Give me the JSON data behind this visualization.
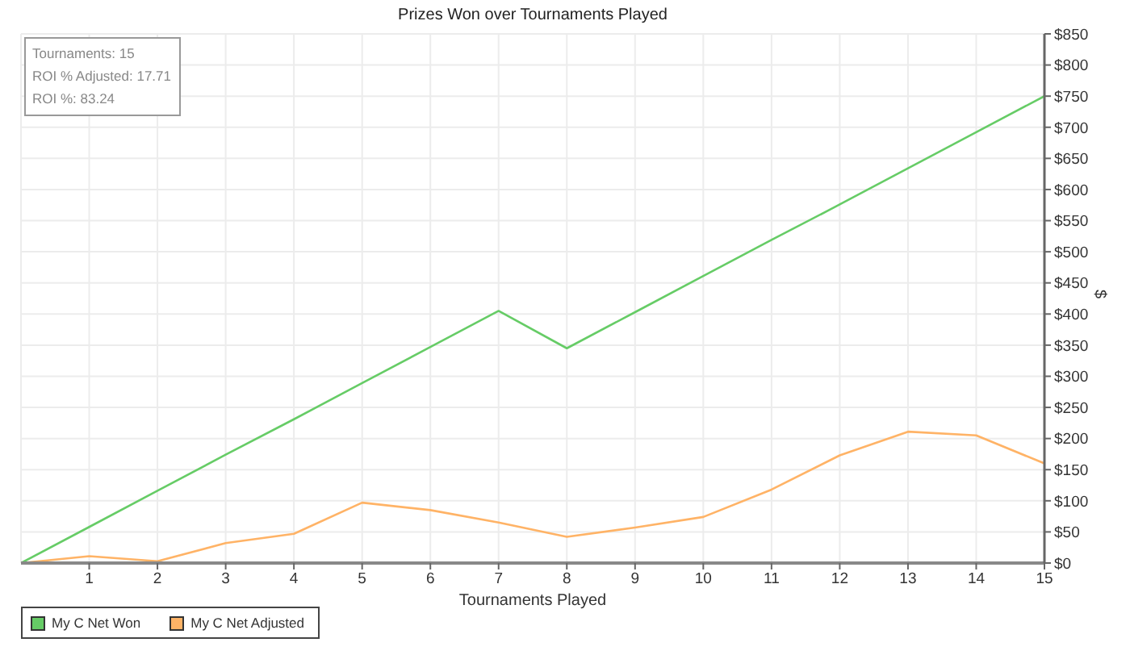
{
  "chart_data": {
    "type": "line",
    "title": "Prizes Won over Tournaments Played",
    "xlabel": "Tournaments Played",
    "ylabel": "$",
    "annotations": [
      "Tournaments: 15",
      "ROI % Adjusted: 17.71",
      "ROI %: 83.24"
    ],
    "x": [
      0,
      1,
      2,
      3,
      4,
      5,
      6,
      7,
      8,
      9,
      10,
      11,
      12,
      13,
      14,
      15
    ],
    "series": [
      {
        "name": "My C Net Won",
        "color": "#66cc66",
        "values": [
          0,
          58,
          116,
          174,
          231,
          289,
          347,
          405,
          345,
          403,
          461,
          519,
          576,
          634,
          692,
          750
        ]
      },
      {
        "name": "My C Net Adjusted",
        "color": "#ffb366",
        "values": [
          0,
          11,
          3,
          32,
          47,
          97,
          85,
          65,
          42,
          57,
          74,
          118,
          173,
          211,
          205,
          160
        ]
      }
    ],
    "xlim": [
      0,
      15
    ],
    "xticks": [
      1,
      2,
      3,
      4,
      5,
      6,
      7,
      8,
      9,
      10,
      11,
      12,
      13,
      14,
      15
    ],
    "ylim": [
      0,
      850
    ],
    "yticks": [
      {
        "value": 0,
        "label": "$0"
      },
      {
        "value": 50,
        "label": "$50"
      },
      {
        "value": 100,
        "label": "$100"
      },
      {
        "value": 150,
        "label": "$150"
      },
      {
        "value": 200,
        "label": "$200"
      },
      {
        "value": 250,
        "label": "$250"
      },
      {
        "value": 300,
        "label": "$300"
      },
      {
        "value": 350,
        "label": "$350"
      },
      {
        "value": 400,
        "label": "$400"
      },
      {
        "value": 450,
        "label": "$450"
      },
      {
        "value": 500,
        "label": "$500"
      },
      {
        "value": 550,
        "label": "$550"
      },
      {
        "value": 600,
        "label": "$600"
      },
      {
        "value": 650,
        "label": "$650"
      },
      {
        "value": 700,
        "label": "$700"
      },
      {
        "value": 750,
        "label": "$750"
      },
      {
        "value": 800,
        "label": "$800"
      },
      {
        "value": 850,
        "label": "$850"
      }
    ],
    "grid": true,
    "legend": "bottom left",
    "line_style": "solid"
  }
}
